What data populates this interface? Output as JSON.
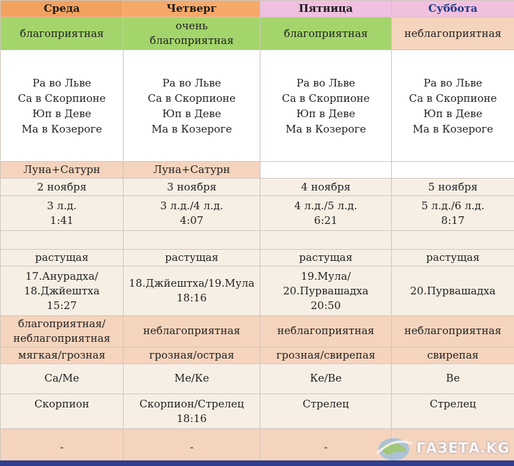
{
  "days": [
    "Среда",
    "Четверг",
    "Пятница",
    "Суббота"
  ],
  "rows": {
    "quality": [
      "благоприятная",
      [
        "очень",
        "благоприятная"
      ],
      "благоприятная",
      "неблагоприятная"
    ],
    "planets": [
      "Ра во Льве",
      "Са в Скорпионе",
      "Юп в Деве",
      "Ма в Козероге"
    ],
    "conjunction": [
      "Луна+Сатурн",
      "Луна+Сатурн",
      "",
      ""
    ],
    "dates": [
      "2 ноября",
      "3 ноября",
      "4 ноября",
      "5 ноября"
    ],
    "lunar_day": [
      [
        "3 л.д.",
        "1:41"
      ],
      [
        "3 л.д./4 л.д.",
        "4:07"
      ],
      [
        "4 л.д./5 л.д.",
        "6:21"
      ],
      [
        "5 л.д./6 л.д.",
        "8:17"
      ]
    ],
    "empty": [
      "",
      "",
      "",
      ""
    ],
    "moon_phase": [
      "растущая",
      "растущая",
      "растущая",
      "растущая"
    ],
    "nakshatra": [
      [
        "17.Анурадха/",
        "18.Джйештха",
        "15:27"
      ],
      [
        "18.Джйештха/19.Мула",
        "",
        "18:16"
      ],
      [
        "19.Мула/",
        "20.Пурвашадха",
        "20:50"
      ],
      [
        "20.Пурвашадха"
      ]
    ],
    "nakshatra_quality": [
      [
        "благоприятная/",
        "неблагоприятная"
      ],
      "неблагоприятная",
      "неблагоприятная",
      "неблагоприятная"
    ],
    "nature": [
      "мягкая/грозная",
      "грозная/острая",
      "грозная/свирепая",
      "свирепая"
    ],
    "rulers": [
      "Са/Ме",
      "Ме/Ке",
      "Ке/Ве",
      "Ве"
    ],
    "sign": [
      [
        "Скорпион"
      ],
      [
        "Скорпион/Стрелец",
        "18:16"
      ],
      [
        "Стрелец"
      ],
      [
        "Стрелец"
      ]
    ],
    "last": [
      "-",
      "-",
      "-",
      "-"
    ]
  },
  "watermark": "ГАЗЕТА.KG",
  "colors": {
    "header_wed": "#f2a25e",
    "header_thu": "#f6a969",
    "header_fri": "#f1bfe0",
    "header_sat": "#f2c0df",
    "green": "#a4d56c",
    "peach": "#f5d4bd",
    "pale": "#f7efe4"
  }
}
